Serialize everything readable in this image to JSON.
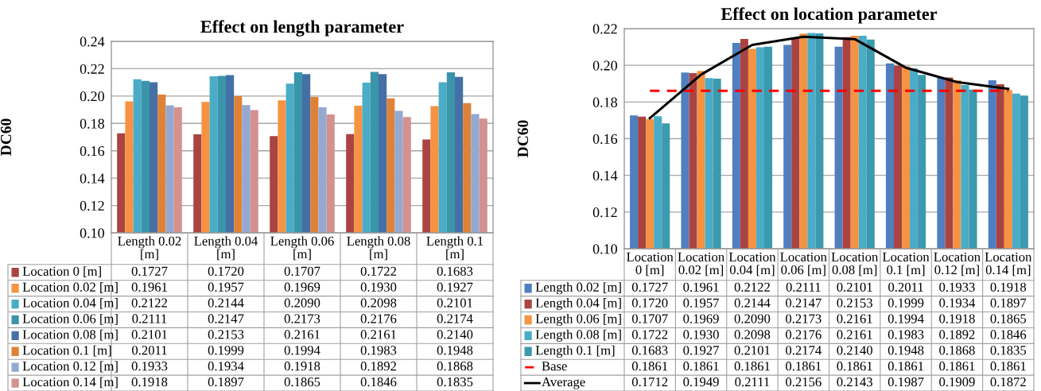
{
  "chart_data": [
    {
      "type": "bar",
      "title": "Effect on length parameter",
      "ylabel": "DC60",
      "categories": [
        "Length 0.02\n[m]",
        "Length 0.04\n[m]",
        "Length 0.06\n[m]",
        "Length 0.08\n[m]",
        "Length 0.1\n[m]"
      ],
      "ylim": [
        0.1,
        0.24
      ],
      "yticks": [
        {
          "value": 0.1,
          "label": "0.10"
        },
        {
          "value": 0.12,
          "label": "0.12"
        },
        {
          "value": 0.14,
          "label": "0.14"
        },
        {
          "value": 0.16,
          "label": "0.16"
        },
        {
          "value": 0.18,
          "label": "0.18"
        },
        {
          "value": 0.2,
          "label": "0.20"
        },
        {
          "value": 0.22,
          "label": "0.22"
        },
        {
          "value": 0.24,
          "label": "0.24"
        }
      ],
      "grid": "y",
      "legend": "bottom",
      "series": [
        {
          "name": "Location 0 [m]",
          "color": "#a94442",
          "values": [
            0.1727,
            0.172,
            0.1707,
            0.1722,
            0.1683
          ],
          "value_labels": [
            "0.1727",
            "0.1720",
            "0.1707",
            "0.1722",
            "0.1683"
          ]
        },
        {
          "name": "Location 0.02 [m]",
          "color": "#f59342",
          "values": [
            0.1961,
            0.1957,
            0.1969,
            0.193,
            0.1927
          ],
          "value_labels": [
            "0.1961",
            "0.1957",
            "0.1969",
            "0.1930",
            "0.1927"
          ]
        },
        {
          "name": "Location 0.04 [m]",
          "color": "#4aacc6",
          "values": [
            0.2122,
            0.2144,
            0.209,
            0.2098,
            0.2101
          ],
          "value_labels": [
            "0.2122",
            "0.2144",
            "0.2090",
            "0.2098",
            "0.2101"
          ]
        },
        {
          "name": "Location 0.06 [m]",
          "color": "#3b95aa",
          "values": [
            0.2111,
            0.2147,
            0.2173,
            0.2176,
            0.2174
          ],
          "value_labels": [
            "0.2111",
            "0.2147",
            "0.2173",
            "0.2176",
            "0.2174"
          ]
        },
        {
          "name": "Location 0.08 [m]",
          "color": "#4470a6",
          "values": [
            0.2101,
            0.2153,
            0.2161,
            0.2161,
            0.214
          ],
          "value_labels": [
            "0.2101",
            "0.2153",
            "0.2161",
            "0.2161",
            "0.2140"
          ]
        },
        {
          "name": "Location 0.1 [m]",
          "color": "#de823a",
          "values": [
            0.2011,
            0.1999,
            0.1994,
            0.1983,
            0.1948
          ],
          "value_labels": [
            "0.2011",
            "0.1999",
            "0.1994",
            "0.1983",
            "0.1948"
          ]
        },
        {
          "name": "Location 0.12 [m]",
          "color": "#93a9d2",
          "values": [
            0.1933,
            0.1934,
            0.1918,
            0.1892,
            0.1868
          ],
          "value_labels": [
            "0.1933",
            "0.1934",
            "0.1918",
            "0.1892",
            "0.1868"
          ]
        },
        {
          "name": "Location 0.14 [m]",
          "color": "#d39190",
          "values": [
            0.1918,
            0.1897,
            0.1865,
            0.1846,
            0.1835
          ],
          "value_labels": [
            "0.1918",
            "0.1897",
            "0.1865",
            "0.1846",
            "0.1835"
          ]
        }
      ]
    },
    {
      "type": "bar",
      "title": "Effect on location parameter",
      "ylabel": "DC60",
      "categories": [
        "Location\n0 [m]",
        "Location\n0.02 [m]",
        "Location\n0.04 [m]",
        "Location\n0.06 [m]",
        "Location\n0.08 [m]",
        "Location\n0.1 [m]",
        "Location\n0.12 [m]",
        "Location\n0.14 [m]"
      ],
      "ylim": [
        0.1,
        0.22
      ],
      "yticks": [
        {
          "value": 0.1,
          "label": "0.10"
        },
        {
          "value": 0.12,
          "label": "0.12"
        },
        {
          "value": 0.14,
          "label": "0.14"
        },
        {
          "value": 0.16,
          "label": "0.16"
        },
        {
          "value": 0.18,
          "label": "0.18"
        },
        {
          "value": 0.2,
          "label": "0.20"
        },
        {
          "value": 0.22,
          "label": "0.22"
        }
      ],
      "grid": "y",
      "legend": "bottom",
      "series": [
        {
          "name": "Length 0.02 [m]",
          "color": "#4f7fbf",
          "values": [
            0.1727,
            0.1961,
            0.2122,
            0.2111,
            0.2101,
            0.2011,
            0.1933,
            0.1918
          ],
          "value_labels": [
            "0.1727",
            "0.1961",
            "0.2122",
            "0.2111",
            "0.2101",
            "0.2011",
            "0.1933",
            "0.1918"
          ]
        },
        {
          "name": "Length 0.04 [m]",
          "color": "#a94442",
          "values": [
            0.172,
            0.1957,
            0.2144,
            0.2147,
            0.2153,
            0.1999,
            0.1934,
            0.1897
          ],
          "value_labels": [
            "0.1720",
            "0.1957",
            "0.2144",
            "0.2147",
            "0.2153",
            "0.1999",
            "0.1934",
            "0.1897"
          ]
        },
        {
          "name": "Length 0.06 [m]",
          "color": "#f59342",
          "values": [
            0.1707,
            0.1969,
            0.209,
            0.2173,
            0.2161,
            0.1994,
            0.1918,
            0.1865
          ],
          "value_labels": [
            "0.1707",
            "0.1969",
            "0.2090",
            "0.2173",
            "0.2161",
            "0.1994",
            "0.1918",
            "0.1865"
          ]
        },
        {
          "name": "Length 0.08 [m]",
          "color": "#4aacc6",
          "values": [
            0.1722,
            0.193,
            0.2098,
            0.2176,
            0.2161,
            0.1983,
            0.1892,
            0.1846
          ],
          "value_labels": [
            "0.1722",
            "0.1930",
            "0.2098",
            "0.2176",
            "0.2161",
            "0.1983",
            "0.1892",
            "0.1846"
          ]
        },
        {
          "name": "Length 0.1 [m]",
          "color": "#3b9aae",
          "values": [
            0.1683,
            0.1927,
            0.2101,
            0.2174,
            0.214,
            0.1948,
            0.1868,
            0.1835
          ],
          "value_labels": [
            "0.1683",
            "0.1927",
            "0.2101",
            "0.2174",
            "0.2140",
            "0.1948",
            "0.1868",
            "0.1835"
          ]
        },
        {
          "name": "Base",
          "type": "line",
          "line_style": "dashed",
          "color": "#ff0000",
          "values": [
            0.1861,
            0.1861,
            0.1861,
            0.1861,
            0.1861,
            0.1861,
            0.1861,
            0.1861
          ],
          "value_labels": [
            "0.1861",
            "0.1861",
            "0.1861",
            "0.1861",
            "0.1861",
            "0.1861",
            "0.1861",
            "0.1861"
          ]
        },
        {
          "name": "Average",
          "type": "line",
          "line_style": "solid",
          "color": "#000000",
          "values": [
            0.1712,
            0.1949,
            0.2111,
            0.2156,
            0.2143,
            0.1987,
            0.1909,
            0.1872
          ],
          "value_labels": [
            "0.1712",
            "0.1949",
            "0.2111",
            "0.2156",
            "0.2143",
            "0.1987",
            "0.1909",
            "0.1872"
          ]
        }
      ]
    }
  ]
}
